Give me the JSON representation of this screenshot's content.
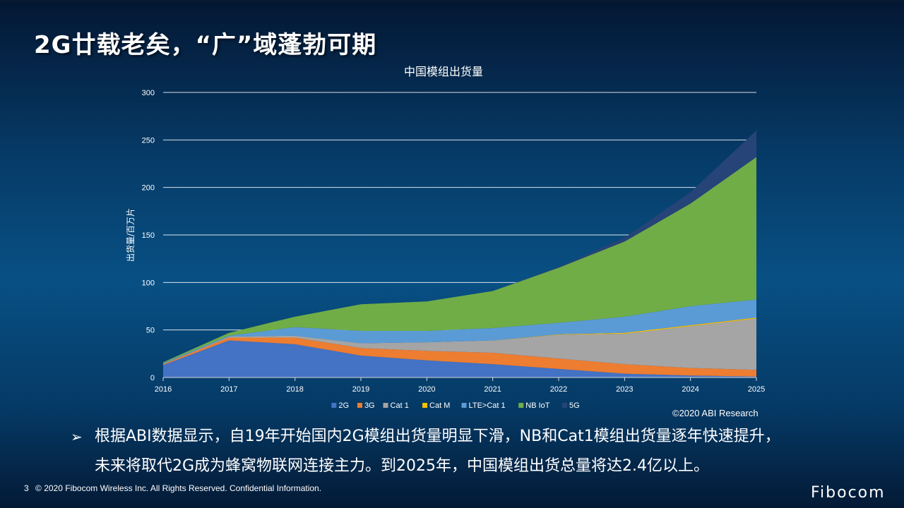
{
  "slide": {
    "title": "2G廿载老矣，“广”域蓬勃可期",
    "source_note": "©2020 ABI Research",
    "bullet_lines": [
      "根据ABI数据显示，自19年开始国内2G模组出货量明显下滑，NB和Cat1模组出货量逐年快速提升，",
      "未来将取代2G成为蜂窝物联网连接主力。到2025年，中国模组出货总量将达2.4亿以上。"
    ],
    "bullet_icon": "arrow-bullet-icon",
    "page_number": "3",
    "footer_text": "© 2020 Fibocom Wireless Inc. All Rights Reserved. Confidential Information.",
    "logo_text": "Fibocom",
    "logo_icon": "fibocom-logo-icon"
  },
  "chart_data": {
    "type": "area",
    "stacked": true,
    "title": "中国模组出货量",
    "ylabel": "出货量/百万片",
    "xlabel": "",
    "x": [
      "2016",
      "2017",
      "2018",
      "2019",
      "2020",
      "2021",
      "2022",
      "2023",
      "2024",
      "2025"
    ],
    "ylim": [
      0,
      300
    ],
    "yticks": [
      0,
      50,
      100,
      150,
      200,
      250,
      300
    ],
    "grid": true,
    "legend_position": "bottom",
    "series": [
      {
        "name": "2G",
        "color": "#4472c4",
        "values": [
          13,
          39,
          35,
          23,
          18,
          14,
          9,
          4,
          2,
          1
        ]
      },
      {
        "name": "3G",
        "color": "#ed7d31",
        "values": [
          1,
          3,
          7,
          8,
          10,
          12,
          11,
          10,
          8,
          7
        ]
      },
      {
        "name": "Cat 1",
        "color": "#a5a5a5",
        "values": [
          0,
          1,
          2,
          5,
          9,
          13,
          25,
          32,
          44,
          54
        ]
      },
      {
        "name": "Cat M",
        "color": "#ffc000",
        "values": [
          0,
          0,
          0,
          0,
          0,
          0,
          0.5,
          1,
          1,
          1
        ]
      },
      {
        "name": "LTE>Cat 1",
        "color": "#5b9bd5",
        "values": [
          1,
          1,
          9,
          13,
          12,
          13,
          12,
          17,
          20,
          19
        ]
      },
      {
        "name": "NB IoT",
        "color": "#70ad47",
        "values": [
          1,
          3,
          11,
          28,
          31,
          39,
          58,
          79,
          108,
          150
        ]
      },
      {
        "name": "5G",
        "color": "#264478",
        "values": [
          0,
          0,
          0,
          0,
          0,
          0,
          1,
          4,
          12,
          28
        ]
      }
    ]
  }
}
